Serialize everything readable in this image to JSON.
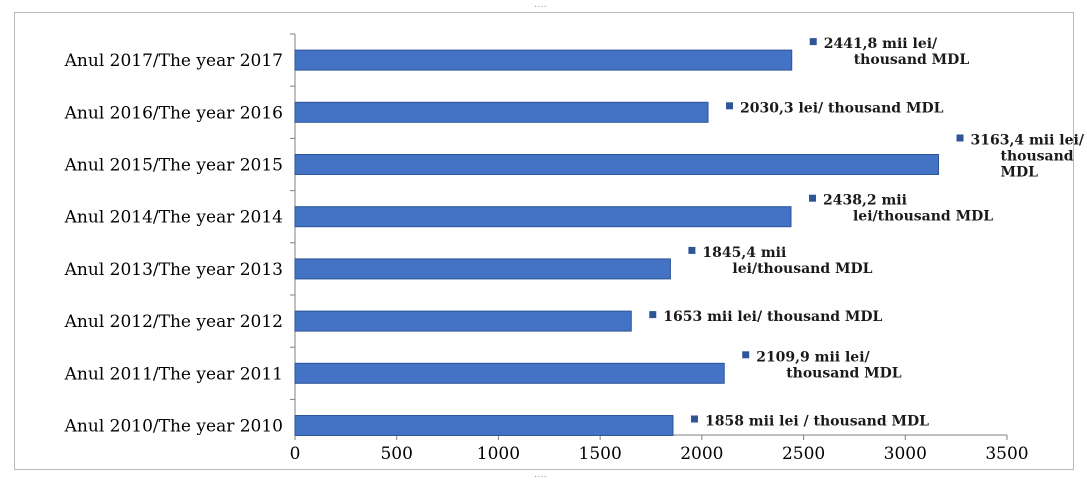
{
  "chart_data": {
    "type": "bar",
    "orientation": "horizontal",
    "categories": [
      "Anul 2017/The year 2017",
      "Anul 2016/The year 2016",
      "Anul 2015/The year 2015",
      "Anul 2014/The year 2014",
      "Anul 2013/The year 2013",
      "Anul 2012/The year 2012",
      "Anul 2011/The year 2011",
      "Anul 2010/The year 2010"
    ],
    "values": [
      2441.8,
      2030.3,
      3163.4,
      2438.2,
      1845.4,
      1653,
      2109.9,
      1858
    ],
    "data_labels": [
      [
        "2441,8 mii lei/",
        "thousand MDL"
      ],
      [
        "2030,3 lei/ thousand MDL"
      ],
      [
        "3163,4 mii lei/",
        "thousand",
        "MDL"
      ],
      [
        "2438,2 mii",
        "lei/thousand MDL"
      ],
      [
        "1845,4 mii",
        "lei/thousand MDL"
      ],
      [
        "1653 mii lei/ thousand MDL"
      ],
      [
        "2109,9 mii lei/",
        "thousand MDL"
      ],
      [
        "1858 mii lei / thousand MDL"
      ]
    ],
    "xlim": [
      0,
      3500
    ],
    "xticks": [
      "0",
      "500",
      "1000",
      "1500",
      "2000",
      "2500",
      "3000",
      "3500"
    ],
    "title": "",
    "xlabel": "",
    "ylabel": "",
    "grid": false,
    "legend": "none",
    "colors": {
      "bar_fill": "#4472c4",
      "bar_stroke": "#2e5597",
      "label_marker": "#2e5597",
      "axis": "#808080"
    }
  }
}
